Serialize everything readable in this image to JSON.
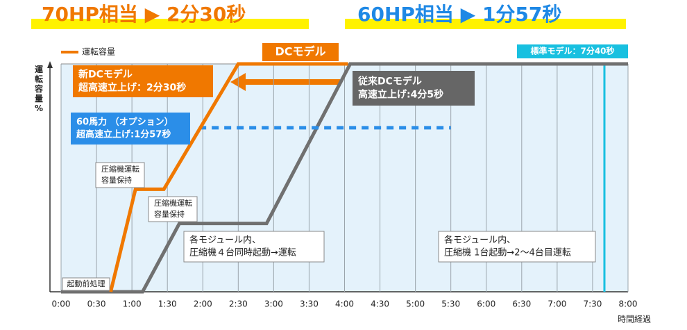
{
  "chart_data": {
    "type": "line",
    "headers": [
      {
        "text": "70HP相当 ▶ 2分30秒",
        "color": "#f07800"
      },
      {
        "text": "60HP相当 ▶ 1分57秒",
        "color": "#1e88e5"
      }
    ],
    "y_label": "運転容量%",
    "x_label": "時間経過",
    "xlim": [
      0,
      8
    ],
    "ylim": [
      0,
      100
    ],
    "xticks": [
      {
        "value": 0,
        "label": "0:00"
      },
      {
        "value": 0.5,
        "label": "0:30"
      },
      {
        "value": 1,
        "label": "1:00"
      },
      {
        "value": 1.5,
        "label": "1:30"
      },
      {
        "value": 2,
        "label": "2:00"
      },
      {
        "value": 2.5,
        "label": "2:30"
      },
      {
        "value": 3,
        "label": "3:00"
      },
      {
        "value": 3.5,
        "label": "3:30"
      },
      {
        "value": 4,
        "label": "4:00"
      },
      {
        "value": 4.5,
        "label": "4:30"
      },
      {
        "value": 5,
        "label": "5:00"
      },
      {
        "value": 5.5,
        "label": "5:30"
      },
      {
        "value": 6,
        "label": "6:00"
      },
      {
        "value": 6.5,
        "label": "6:30"
      },
      {
        "value": 7,
        "label": "7:00"
      },
      {
        "value": 7.5,
        "label": "7:30"
      },
      {
        "value": 8,
        "label": "8:00"
      }
    ],
    "series": [
      {
        "name": "運転容量",
        "color": "#f07800",
        "x": [
          0.7,
          1.05,
          1.45,
          2.5,
          4.05
        ],
        "values": [
          0,
          45,
          45,
          100,
          100
        ]
      },
      {
        "color": "#707070",
        "x": [
          0,
          1.15,
          1.67,
          2.9,
          4.08,
          8
        ],
        "values": [
          0,
          0,
          30,
          30,
          100,
          100
        ]
      },
      {
        "color": "#2b8ee8",
        "dashed": true,
        "x": [
          1.95,
          5.5
        ],
        "values": [
          72,
          72
        ]
      }
    ],
    "vline": {
      "x": 7.667,
      "color": "#18c0e0"
    },
    "annotations": [
      {
        "lines": [
          "新DCモデル",
          "超高速立上げ：2分30秒"
        ]
      },
      {
        "lines": [
          "60馬力 （オプション）",
          "超高速立上げ:1分57秒"
        ]
      },
      {
        "lines": [
          "従来DCモデル",
          "高速立上げ:4分5秒"
        ]
      },
      {
        "lines": [
          "圧縮機運転",
          "容量保持"
        ]
      },
      {
        "lines": [
          "圧縮機運転",
          "容量保持"
        ]
      },
      {
        "lines": [
          "各モジュール内、",
          "圧縮機４台同時起動→運転"
        ]
      },
      {
        "lines": [
          "各モジュール内、",
          "圧縮機 1台起動→2～4台目運転"
        ]
      },
      {
        "lines": [
          "起動前処理"
        ]
      },
      {
        "lines": [
          "DCモデル"
        ]
      },
      {
        "lines": [
          "標準モデル：7分40秒"
        ]
      }
    ]
  }
}
